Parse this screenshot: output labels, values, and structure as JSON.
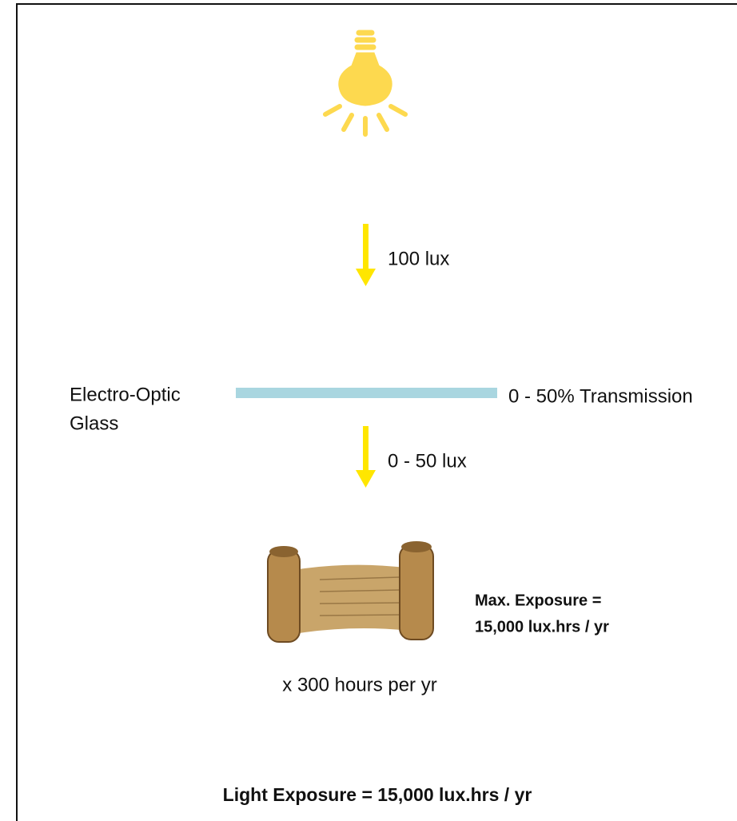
{
  "light_source": {
    "output": "100 lux"
  },
  "glass": {
    "label_lines": [
      "Electro-Optic",
      "Glass"
    ],
    "transmission": "0 - 50% Transmission"
  },
  "transmitted": "0 - 50 lux",
  "artifact": {
    "max_exposure_lines": [
      "Max. Exposure =",
      "15,000 lux.hrs / yr"
    ]
  },
  "duration": "x 300 hours per yr",
  "result": "Light Exposure = 15,000 lux.hrs / yr"
}
